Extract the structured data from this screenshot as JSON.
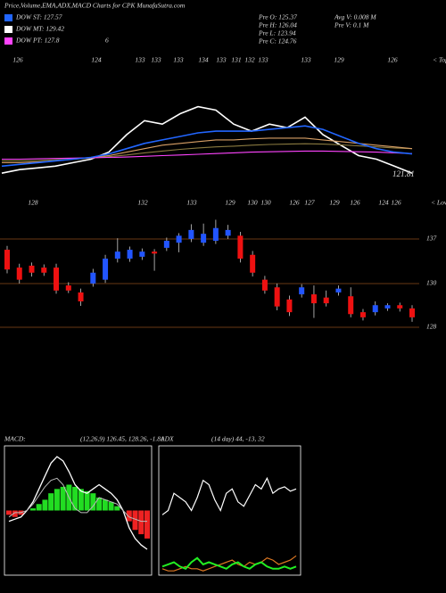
{
  "header": {
    "title": "Price,Volume,EMA,ADX,MACD Charts for CPK MunafaSutra.com",
    "legend": [
      {
        "label": "DOW ST: 127.57",
        "color": "#2266ff"
      },
      {
        "label": "DOW MT: 129.42",
        "color": "#ffffff"
      },
      {
        "label": "DOW PT: 127.8",
        "color": "#ff44ff"
      }
    ],
    "legend_extra": "6",
    "info": [
      "Pre  O: 125.37",
      "Pre  H: 126.04",
      "Pre  L: 123.94",
      "Pre  C: 124.76"
    ],
    "info2": [
      "Avg V: 0.008  M",
      "Pre  V: 0.1 M"
    ]
  },
  "price_panel": {
    "ylim": [
      120,
      146
    ],
    "tops": [
      126,
      124,
      133,
      133,
      133,
      134,
      133,
      131,
      132,
      133,
      133,
      129,
      126
    ],
    "tops_label": "< Tops",
    "lows": [
      128,
      132,
      133,
      129,
      130,
      130,
      126,
      127,
      129,
      126,
      124,
      126
    ],
    "lows_label": "< Lows",
    "last": 121.81,
    "series": [
      {
        "color": "#ffffff",
        "values": [
          122,
          123,
          123.5,
          124,
          125,
          126,
          128,
          133,
          137,
          136,
          139,
          141,
          140,
          136,
          134,
          136,
          135,
          138,
          133,
          130,
          127,
          126,
          124,
          122
        ]
      },
      {
        "color": "#8a7a40",
        "values": [
          125.5,
          125.5,
          125.6,
          125.8,
          126,
          126.3,
          126.7,
          127.2,
          127.8,
          128.3,
          128.8,
          129.2,
          129.5,
          129.7,
          130,
          130.2,
          130.3,
          130.4,
          130.3,
          130.1,
          129.8,
          129.5,
          129.2,
          129
        ]
      },
      {
        "color": "#d9a066",
        "values": [
          125,
          125,
          125.2,
          125.5,
          126,
          126.5,
          127,
          128,
          129,
          130,
          130.5,
          131,
          131.5,
          131.5,
          131.8,
          132,
          132,
          132,
          131.5,
          131,
          130.5,
          130,
          129.5,
          129
        ]
      },
      {
        "color": "#ff44ff",
        "values": [
          126,
          126,
          126.1,
          126.2,
          126.3,
          126.4,
          126.5,
          126.6,
          126.8,
          127,
          127.2,
          127.4,
          127.6,
          127.8,
          128,
          128.1,
          128.2,
          128.3,
          128.3,
          128.2,
          128.1,
          128,
          127.8,
          127.6
        ]
      },
      {
        "color": "#2266ff",
        "values": [
          124,
          124.5,
          125,
          125.5,
          126,
          126.5,
          127.5,
          129,
          130.5,
          131.5,
          132.5,
          133.5,
          134,
          134,
          134,
          134.5,
          135,
          135.5,
          134.5,
          132.5,
          130.5,
          129,
          128,
          127.5
        ]
      }
    ]
  },
  "candle_panel": {
    "ylim": [
      121,
      141
    ],
    "up_color": "#2255ff",
    "down_color": "#ee1111",
    "levels": [
      137,
      130,
      128
    ],
    "open": [
      135.4,
      132.6,
      132.9,
      132.6,
      132.6,
      129.8,
      128.7,
      130.1,
      130.7,
      134.0,
      134.0,
      134.3,
      135.1,
      135.7,
      136.5,
      137.1,
      136.5,
      136.8,
      137.6,
      137.6,
      134.6,
      130.7,
      129.5,
      127.6,
      128.4,
      128.4,
      127.9,
      128.7,
      128.1,
      125.6,
      125.6,
      126.2,
      126.7,
      126.2
    ],
    "high": [
      136,
      133.2,
      133.4,
      133.1,
      133.2,
      130.3,
      129.3,
      132.4,
      134.6,
      137.2,
      135.9,
      135.6,
      135.5,
      137.3,
      138,
      139.4,
      139.5,
      140.1,
      139.3,
      138.2,
      135.2,
      131.3,
      130.1,
      128.2,
      130,
      129.8,
      129,
      129.8,
      129.5,
      126.1,
      127.3,
      127,
      127.1,
      126.7
    ],
    "low": [
      131.7,
      130.1,
      131.2,
      131.3,
      128.5,
      128.6,
      126.6,
      129.6,
      130.2,
      133.4,
      133.5,
      133.8,
      132.1,
      135.2,
      135,
      136.6,
      136,
      136.3,
      137.1,
      133.4,
      131.2,
      128.5,
      125.9,
      125,
      127.9,
      124.7,
      126.5,
      128.2,
      124.8,
      124.3,
      125.1,
      125.8,
      125.7,
      124.1
    ],
    "close": [
      132.3,
      130.7,
      131.8,
      131.8,
      129.0,
      129.0,
      127.3,
      131.8,
      134.0,
      135.1,
      135.4,
      135.1,
      134.8,
      136.8,
      137.6,
      138.5,
      137.9,
      138.8,
      138.5,
      134.0,
      131.8,
      129.0,
      126.5,
      125.6,
      129.5,
      127.0,
      127.0,
      129.3,
      125.3,
      124.8,
      126.7,
      126.7,
      126.2,
      124.8
    ]
  },
  "macd_panel": {
    "label": "MACD:",
    "params": "(12,26,9) 126.45, 128.26, -1.81",
    "ylim": [
      -3,
      3
    ],
    "pos_color": "#22dd22",
    "neg_color": "#ee2222",
    "histogram": [
      -0.2,
      -0.3,
      -0.2,
      0,
      0.1,
      0.3,
      0.5,
      0.8,
      1.0,
      1.1,
      1.2,
      1.1,
      1.0,
      0.9,
      0.8,
      0.6,
      0.5,
      0.4,
      0.2,
      0,
      -0.5,
      -0.9,
      -1.1,
      -1.3
    ],
    "macd": [
      -0.5,
      -0.4,
      -0.3,
      0,
      0.4,
      1.0,
      1.6,
      2.2,
      2.5,
      2.3,
      1.8,
      1.2,
      0.9,
      0.8,
      1.0,
      1.2,
      1.0,
      0.8,
      0.5,
      0,
      -0.8,
      -1.3,
      -1.6,
      -1.8
    ],
    "signal": [
      -0.3,
      -0.1,
      -0.1,
      0,
      0.3,
      0.7,
      1.1,
      1.4,
      1.5,
      1.2,
      0.6,
      0.1,
      -0.1,
      -0.1,
      0.2,
      0.6,
      0.5,
      0.4,
      0.3,
      0,
      -0.3,
      -0.4,
      -0.5,
      -0.5
    ]
  },
  "adx_panel": {
    "label": "ADX",
    "params": "(14  day) 44,  -13,  32",
    "ylim": [
      0,
      60
    ],
    "series": [
      {
        "color": "#ffffff",
        "values": [
          28,
          30,
          38,
          36,
          34,
          30,
          36,
          44,
          42,
          35,
          30,
          38,
          40,
          34,
          32,
          37,
          42,
          40,
          45,
          38,
          40,
          41,
          39,
          40
        ]
      },
      {
        "color": "#dd7722",
        "values": [
          3,
          2,
          2,
          3,
          4,
          3,
          3,
          2,
          3,
          4,
          5,
          6,
          7,
          5,
          4,
          6,
          5,
          6,
          8,
          7,
          5,
          6,
          7,
          9
        ]
      },
      {
        "color": "#22ee22",
        "values": [
          4,
          5,
          6,
          4,
          3,
          6,
          8,
          5,
          6,
          5,
          4,
          3,
          5,
          6,
          4,
          3,
          5,
          6,
          4,
          3,
          3,
          4,
          3,
          4
        ]
      }
    ]
  }
}
